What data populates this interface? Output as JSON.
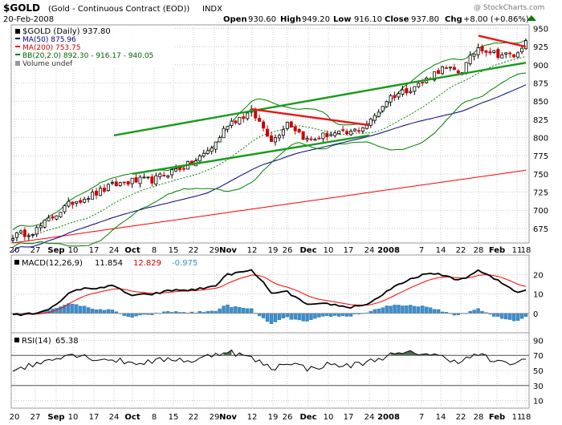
{
  "header": {
    "symbol_title": "$GOLD",
    "symbol_desc": "(Gold - Continuous Contract (EOD))",
    "exchange": "INDX",
    "watermark": "@ StockCharts.com",
    "date": "20-Feb-2008",
    "open_label": "Open",
    "open": "930.60",
    "high_label": "High",
    "high": "949.20",
    "low_label": "Low",
    "low": "916.10",
    "close_label": "Close",
    "close": "937.80",
    "chg_label": "Chg",
    "chg": "+8.00 (+0.86%)"
  },
  "legend": {
    "price": "$GOLD (Daily) 937.80",
    "ma50": "MA(50) 875.96",
    "ma200": "MA(200) 753.75",
    "bb": "BB(20,2.0) 892.30 - 916.17 - 940.05",
    "volume": "Volume undef"
  },
  "colors": {
    "up": "#000000",
    "down": "#cc0000",
    "ma50": "#000080",
    "ma200": "#ff0000",
    "bb": "#008000",
    "ma20": "#008000",
    "trend_green": "#1a9a1a",
    "trend_red": "#ee1111",
    "macd_line": "#000000",
    "signal_line": "#ff0000",
    "hist": "#3b8fce",
    "rsi_line": "#000000",
    "rsi_fill": "#4f6f4f",
    "grid": "#c8c8c8",
    "band_bg": "#ffffff"
  },
  "macd": {
    "label": "MACD(12,26,9)",
    "macd_value": "11.854",
    "signal_value": "12.829",
    "hist_value": "-0.975"
  },
  "rsi": {
    "label": "RSI(14)",
    "value": "65.38"
  },
  "chart_data": [
    {
      "type": "candlestick",
      "name": "price",
      "ylim": [
        655,
        955
      ],
      "y_ticks": [
        675,
        700,
        725,
        750,
        775,
        800,
        825,
        850,
        875,
        900,
        925,
        950
      ],
      "x_tick_labels": [
        "20",
        "27",
        "Sep",
        "10",
        "17",
        "24",
        "Oct",
        "8",
        "15",
        "22",
        "29",
        "Nov",
        "12",
        "19",
        "26",
        "Dec",
        "10",
        "17",
        "24",
        "2008",
        "7",
        "14",
        "22",
        "28",
        "Feb",
        "11",
        "18"
      ],
      "anchors": [
        {
          "label": "20",
          "value": 665
        },
        {
          "label": "27",
          "value": 672
        },
        {
          "label": "Sep",
          "value": 695
        },
        {
          "label": "10",
          "value": 712
        },
        {
          "label": "17",
          "value": 722
        },
        {
          "label": "24",
          "value": 735
        },
        {
          "label": "Oct",
          "value": 740
        },
        {
          "label": "8",
          "value": 742
        },
        {
          "label": "15",
          "value": 755
        },
        {
          "label": "22",
          "value": 765
        },
        {
          "label": "29",
          "value": 790
        },
        {
          "label": "Nov",
          "value": 820
        },
        {
          "label": "12",
          "value": 835
        },
        {
          "label": "19",
          "value": 795
        },
        {
          "label": "26",
          "value": 822
        },
        {
          "label": "Dec",
          "value": 795
        },
        {
          "label": "10",
          "value": 805
        },
        {
          "label": "17",
          "value": 805
        },
        {
          "label": "24",
          "value": 820
        },
        {
          "label": "2008",
          "value": 855
        },
        {
          "label": "7",
          "value": 875
        },
        {
          "label": "14",
          "value": 895
        },
        {
          "label": "22",
          "value": 890
        },
        {
          "label": "28",
          "value": 925
        },
        {
          "label": "Feb",
          "value": 915
        },
        {
          "label": "11",
          "value": 912
        },
        {
          "label": "18",
          "value": 938
        }
      ],
      "ma200_range": [
        655,
        755
      ],
      "trendlines": [
        {
          "color": "green",
          "from": {
            "x": "Oct",
            "y": 750
          },
          "to": {
            "x": "24",
            "y": 803
          }
        },
        {
          "color": "green",
          "from": {
            "x": "24",
            "y": 803
          },
          "to": {
            "x": "7",
            "y": 878
          }
        },
        {
          "color": "green",
          "from": {
            "x": "7",
            "y": 878
          },
          "to": {
            "x": "18",
            "y": 903
          }
        },
        {
          "color": "red",
          "from": {
            "x": "12",
            "y": 839
          },
          "to": {
            "x": "24",
            "y": 817
          }
        },
        {
          "color": "red",
          "from": {
            "x": "28",
            "y": 940
          },
          "to": {
            "x": "18",
            "y": 925
          }
        }
      ]
    },
    {
      "type": "line",
      "name": "macd",
      "ylim": [
        -10,
        30
      ],
      "y_ticks": [
        0,
        10,
        20
      ],
      "anchors": [
        {
          "label": "20",
          "value": -1
        },
        {
          "label": "27",
          "value": 0
        },
        {
          "label": "Sep",
          "value": 4
        },
        {
          "label": "10",
          "value": 12
        },
        {
          "label": "17",
          "value": 13
        },
        {
          "label": "24",
          "value": 14
        },
        {
          "label": "Oct",
          "value": 9
        },
        {
          "label": "8",
          "value": 10
        },
        {
          "label": "15",
          "value": 12
        },
        {
          "label": "22",
          "value": 12
        },
        {
          "label": "29",
          "value": 14
        },
        {
          "label": "Nov",
          "value": 20
        },
        {
          "label": "12",
          "value": 22
        },
        {
          "label": "19",
          "value": 10
        },
        {
          "label": "26",
          "value": 11
        },
        {
          "label": "Dec",
          "value": 4
        },
        {
          "label": "10",
          "value": 5
        },
        {
          "label": "17",
          "value": 3
        },
        {
          "label": "24",
          "value": 5
        },
        {
          "label": "2008",
          "value": 12
        },
        {
          "label": "7",
          "value": 20
        },
        {
          "label": "14",
          "value": 20
        },
        {
          "label": "22",
          "value": 17
        },
        {
          "label": "28",
          "value": 22
        },
        {
          "label": "Feb",
          "value": 17
        },
        {
          "label": "11",
          "value": 11
        },
        {
          "label": "18",
          "value": 12
        }
      ]
    },
    {
      "type": "line",
      "name": "rsi",
      "ylim": [
        0,
        100
      ],
      "y_ticks": [
        10,
        30,
        50,
        70,
        90
      ],
      "anchors": [
        {
          "label": "20",
          "value": 52
        },
        {
          "label": "27",
          "value": 58
        },
        {
          "label": "Sep",
          "value": 68
        },
        {
          "label": "10",
          "value": 72
        },
        {
          "label": "17",
          "value": 66
        },
        {
          "label": "24",
          "value": 64
        },
        {
          "label": "Oct",
          "value": 60
        },
        {
          "label": "8",
          "value": 62
        },
        {
          "label": "15",
          "value": 66
        },
        {
          "label": "22",
          "value": 62
        },
        {
          "label": "29",
          "value": 72
        },
        {
          "label": "Nov",
          "value": 76
        },
        {
          "label": "12",
          "value": 66
        },
        {
          "label": "19",
          "value": 52
        },
        {
          "label": "26",
          "value": 62
        },
        {
          "label": "Dec",
          "value": 52
        },
        {
          "label": "10",
          "value": 58
        },
        {
          "label": "17",
          "value": 56
        },
        {
          "label": "24",
          "value": 62
        },
        {
          "label": "2008",
          "value": 70
        },
        {
          "label": "7",
          "value": 74
        },
        {
          "label": "14",
          "value": 68
        },
        {
          "label": "22",
          "value": 62
        },
        {
          "label": "28",
          "value": 72
        },
        {
          "label": "Feb",
          "value": 60
        },
        {
          "label": "11",
          "value": 60
        },
        {
          "label": "18",
          "value": 65
        }
      ]
    }
  ]
}
